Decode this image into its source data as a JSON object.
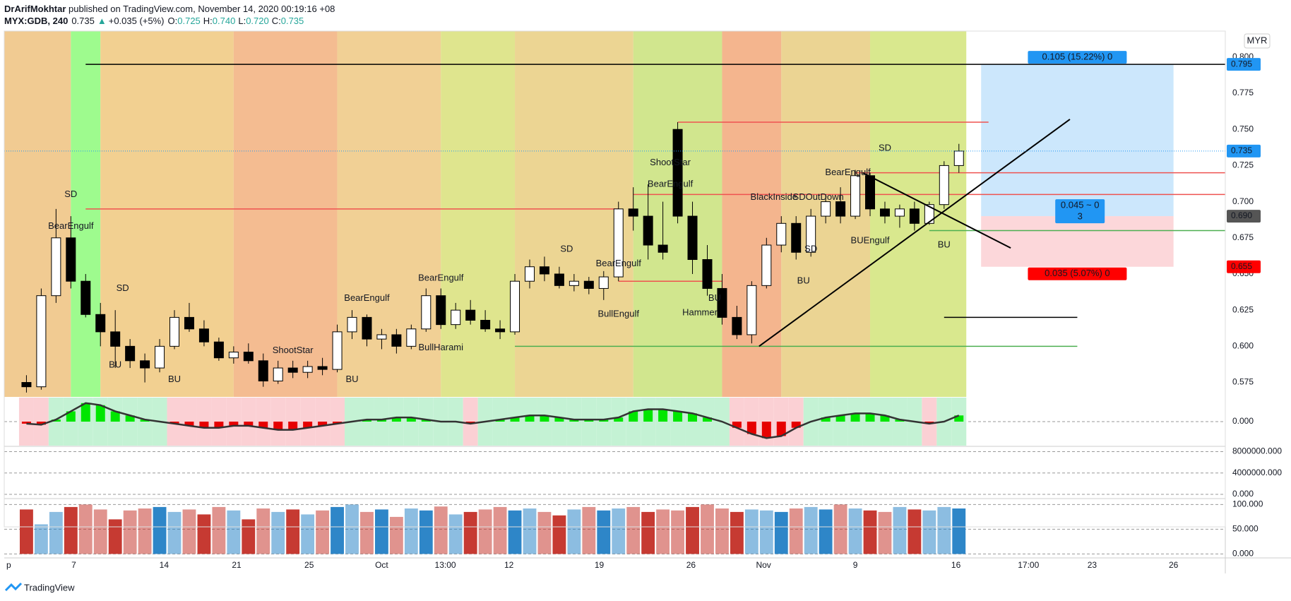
{
  "chart_data": {
    "type": "candlestick",
    "header": {
      "author": "DrArifMokhtar",
      "published": " published on TradingView.com, November 14, 2020 00:19:16 +08",
      "symbol": "MYX:GDB, 240",
      "price": "0.735",
      "arrow": "▲",
      "change": "+0.035 (+5%)",
      "ohlc": [
        {
          "label": "O:",
          "value": "0.725"
        },
        {
          "label": "H:",
          "value": "0.740"
        },
        {
          "label": "L:",
          "value": "0.720"
        },
        {
          "label": "C:",
          "value": "0.735"
        }
      ]
    },
    "currency": "MYR",
    "footer": "TradingView",
    "up_color": "#ffffff",
    "down_color": "#000000",
    "candles": [
      [
        0.575,
        0.58,
        0.568,
        0.572
      ],
      [
        0.572,
        0.64,
        0.57,
        0.635
      ],
      [
        0.635,
        0.695,
        0.63,
        0.675
      ],
      [
        0.675,
        0.69,
        0.64,
        0.645
      ],
      [
        0.645,
        0.65,
        0.62,
        0.622
      ],
      [
        0.622,
        0.63,
        0.6,
        0.61
      ],
      [
        0.61,
        0.625,
        0.585,
        0.6
      ],
      [
        0.6,
        0.605,
        0.585,
        0.59
      ],
      [
        0.59,
        0.595,
        0.575,
        0.585
      ],
      [
        0.585,
        0.605,
        0.582,
        0.6
      ],
      [
        0.6,
        0.625,
        0.598,
        0.62
      ],
      [
        0.62,
        0.63,
        0.61,
        0.612
      ],
      [
        0.612,
        0.618,
        0.6,
        0.603
      ],
      [
        0.603,
        0.606,
        0.59,
        0.592
      ],
      [
        0.592,
        0.6,
        0.588,
        0.596
      ],
      [
        0.596,
        0.602,
        0.588,
        0.59
      ],
      [
        0.59,
        0.595,
        0.572,
        0.576
      ],
      [
        0.576,
        0.59,
        0.574,
        0.585
      ],
      [
        0.585,
        0.59,
        0.578,
        0.582
      ],
      [
        0.582,
        0.59,
        0.578,
        0.586
      ],
      [
        0.586,
        0.592,
        0.58,
        0.584
      ],
      [
        0.584,
        0.615,
        0.582,
        0.61
      ],
      [
        0.61,
        0.625,
        0.605,
        0.62
      ],
      [
        0.62,
        0.622,
        0.6,
        0.605
      ],
      [
        0.605,
        0.612,
        0.598,
        0.608
      ],
      [
        0.608,
        0.612,
        0.595,
        0.6
      ],
      [
        0.6,
        0.615,
        0.598,
        0.612
      ],
      [
        0.612,
        0.64,
        0.61,
        0.635
      ],
      [
        0.635,
        0.64,
        0.612,
        0.615
      ],
      [
        0.615,
        0.63,
        0.612,
        0.625
      ],
      [
        0.625,
        0.632,
        0.615,
        0.618
      ],
      [
        0.618,
        0.625,
        0.61,
        0.612
      ],
      [
        0.612,
        0.618,
        0.605,
        0.61
      ],
      [
        0.61,
        0.65,
        0.608,
        0.645
      ],
      [
        0.645,
        0.66,
        0.64,
        0.655
      ],
      [
        0.655,
        0.662,
        0.645,
        0.65
      ],
      [
        0.65,
        0.655,
        0.64,
        0.642
      ],
      [
        0.642,
        0.65,
        0.638,
        0.645
      ],
      [
        0.645,
        0.648,
        0.636,
        0.64
      ],
      [
        0.64,
        0.652,
        0.632,
        0.648
      ],
      [
        0.648,
        0.7,
        0.645,
        0.695
      ],
      [
        0.695,
        0.71,
        0.68,
        0.69
      ],
      [
        0.69,
        0.712,
        0.66,
        0.67
      ],
      [
        0.67,
        0.7,
        0.66,
        0.665
      ],
      [
        0.75,
        0.755,
        0.685,
        0.69
      ],
      [
        0.69,
        0.7,
        0.65,
        0.66
      ],
      [
        0.66,
        0.67,
        0.635,
        0.64
      ],
      [
        0.64,
        0.65,
        0.615,
        0.62
      ],
      [
        0.62,
        0.628,
        0.605,
        0.608
      ],
      [
        0.608,
        0.645,
        0.602,
        0.642
      ],
      [
        0.642,
        0.675,
        0.64,
        0.67
      ],
      [
        0.67,
        0.69,
        0.665,
        0.685
      ],
      [
        0.685,
        0.69,
        0.66,
        0.665
      ],
      [
        0.665,
        0.695,
        0.662,
        0.69
      ],
      [
        0.69,
        0.705,
        0.685,
        0.7
      ],
      [
        0.7,
        0.71,
        0.685,
        0.69
      ],
      [
        0.69,
        0.722,
        0.688,
        0.718
      ],
      [
        0.718,
        0.72,
        0.69,
        0.695
      ],
      [
        0.695,
        0.7,
        0.685,
        0.69
      ],
      [
        0.69,
        0.698,
        0.682,
        0.695
      ],
      [
        0.695,
        0.7,
        0.68,
        0.685
      ],
      [
        0.685,
        0.7,
        0.684,
        0.698
      ],
      [
        0.698,
        0.728,
        0.695,
        0.725
      ],
      [
        0.725,
        0.74,
        0.72,
        0.735
      ]
    ],
    "xlim": [
      -1.5,
      81
    ],
    "xticks": [
      {
        "value": -1.2,
        "label": "p"
      },
      {
        "value": 3.2,
        "label": "7"
      },
      {
        "value": 9.3,
        "label": "14"
      },
      {
        "value": 14.2,
        "label": "21"
      },
      {
        "value": 19.1,
        "label": "25"
      },
      {
        "value": 24,
        "label": "Oct"
      },
      {
        "value": 28.3,
        "label": "13:00"
      },
      {
        "value": 32.6,
        "label": "12"
      },
      {
        "value": 38.7,
        "label": "19"
      },
      {
        "value": 44.9,
        "label": "26"
      },
      {
        "value": 49.8,
        "label": "Nov"
      },
      {
        "value": 56,
        "label": "9"
      },
      {
        "value": 62.8,
        "label": "16"
      },
      {
        "value": 67.7,
        "label": "17:00"
      },
      {
        "value": 72,
        "label": "23"
      },
      {
        "value": 77.5,
        "label": "26"
      }
    ],
    "ylim": [
      0.565,
      0.818
    ],
    "yticks": [
      {
        "value": 0.575,
        "label": "0.575"
      },
      {
        "value": 0.6,
        "label": "0.600"
      },
      {
        "value": 0.625,
        "label": "0.625"
      },
      {
        "value": 0.65,
        "label": "0.650"
      },
      {
        "value": 0.675,
        "label": "0.675"
      },
      {
        "value": 0.7,
        "label": "0.700"
      },
      {
        "value": 0.725,
        "label": "0.725"
      },
      {
        "value": 0.75,
        "label": "0.750"
      },
      {
        "value": 0.775,
        "label": "0.775"
      },
      {
        "value": 0.8,
        "label": "0.800"
      }
    ],
    "price_labels": [
      {
        "value": 0.795,
        "label": "0.795",
        "color": "#2196f3"
      },
      {
        "value": 0.735,
        "label": "0.735",
        "color": "#2196f3"
      },
      {
        "value": 0.69,
        "label": "0.690",
        "color": "#555555"
      },
      {
        "value": 0.655,
        "label": "0.655",
        "color": "#ff0000"
      }
    ],
    "position": {
      "from": 64.5,
      "to": 77.5,
      "target_text": "0.105 (15.22%) 0",
      "stop_text": "0.035 (5.07%) 0",
      "mid_text": "0.045 ~ 0",
      "mid_text2": "3"
    },
    "levels": [
      {
        "value": 0.795,
        "from": 4,
        "to": 81,
        "color": "#000000"
      },
      {
        "value": 0.755,
        "from": 44,
        "to": 65,
        "color": "#ef5350"
      },
      {
        "value": 0.72,
        "from": 56,
        "to": 81,
        "color": "#ef5350"
      },
      {
        "value": 0.705,
        "from": 41,
        "to": 81,
        "color": "#ef5350"
      },
      {
        "value": 0.695,
        "from": 4,
        "to": 40,
        "color": "#ef5350"
      },
      {
        "value": 0.68,
        "from": 61,
        "to": 81,
        "color": "#4caf50"
      },
      {
        "value": 0.645,
        "from": 40,
        "to": 47,
        "color": "#ef5350"
      },
      {
        "value": 0.62,
        "from": 62,
        "to": 71,
        "color": "#000000"
      },
      {
        "value": 0.6,
        "from": 33,
        "to": 71,
        "color": "#4caf50"
      }
    ],
    "trendlines": [
      {
        "x": [
          49.5,
          70.5
        ],
        "y": [
          0.6,
          0.757
        ]
      },
      {
        "x": [
          56.5,
          66.5
        ],
        "y": [
          0.72,
          0.668
        ]
      }
    ],
    "annotations": [
      {
        "text": "SD",
        "x": 3,
        "y": 0.705,
        "color": "#ef5350"
      },
      {
        "text": "BearEngulf",
        "x": 3,
        "y": 0.683,
        "color": "#ef5350"
      },
      {
        "text": "BU",
        "x": 6,
        "y": 0.587,
        "color": "#4caf50"
      },
      {
        "text": "SD",
        "x": 6.5,
        "y": 0.64,
        "color": "#ef5350"
      },
      {
        "text": "BU",
        "x": 10,
        "y": 0.577,
        "color": "#4caf50"
      },
      {
        "text": "ShootStar",
        "x": 18,
        "y": 0.597,
        "color": "#b0bec5"
      },
      {
        "text": "BearEngulf",
        "x": 23,
        "y": 0.633,
        "color": "#ef5350"
      },
      {
        "text": "BU",
        "x": 22,
        "y": 0.577,
        "color": "#4caf50"
      },
      {
        "text": "BearEngulf",
        "x": 28,
        "y": 0.647,
        "color": "#ef5350"
      },
      {
        "text": "BullHarami",
        "x": 28,
        "y": 0.599,
        "color": "#4caf50"
      },
      {
        "text": "SD",
        "x": 36.5,
        "y": 0.667,
        "color": "#ef5350"
      },
      {
        "text": "BearEngulf",
        "x": 40,
        "y": 0.657,
        "color": "#ef5350"
      },
      {
        "text": "BullEngulf",
        "x": 40,
        "y": 0.622,
        "color": "#4caf50"
      },
      {
        "text": "ShootStar",
        "x": 43.5,
        "y": 0.727,
        "color": "#b0bec5"
      },
      {
        "text": "BearEngulf",
        "x": 43.5,
        "y": 0.712,
        "color": "#ef5350"
      },
      {
        "text": "Hammer",
        "x": 45.5,
        "y": 0.623,
        "color": "#b0bec5"
      },
      {
        "text": "BU",
        "x": 46.5,
        "y": 0.633,
        "color": "#4caf50"
      },
      {
        "text": "BlackInside",
        "x": 50.5,
        "y": 0.703,
        "color": "#ef5350"
      },
      {
        "text": "SDOutDown",
        "x": 53.5,
        "y": 0.703,
        "color": "#ef5350"
      },
      {
        "text": "BU",
        "x": 52.5,
        "y": 0.645,
        "color": "#4caf50"
      },
      {
        "text": "SD",
        "x": 53,
        "y": 0.667,
        "color": "#ef5350"
      },
      {
        "text": "BearEngulf",
        "x": 55.5,
        "y": 0.72,
        "color": "#ef5350"
      },
      {
        "text": "SD",
        "x": 58,
        "y": 0.737,
        "color": "#ef5350"
      },
      {
        "text": "BUEngulf",
        "x": 57,
        "y": 0.673,
        "color": "#4caf50"
      },
      {
        "text": "BU",
        "x": 62,
        "y": 0.67,
        "color": "#4caf50"
      }
    ],
    "oscillator": {
      "values": [
        -0.1,
        -0.15,
        0.1,
        0.5,
        0.9,
        0.8,
        0.5,
        0.3,
        0.1,
        0,
        -0.1,
        -0.2,
        -0.3,
        -0.3,
        -0.2,
        -0.2,
        -0.3,
        -0.4,
        -0.4,
        -0.3,
        -0.2,
        -0.1,
        0,
        0.1,
        0.1,
        0.2,
        0.2,
        0.1,
        0,
        0,
        -0.1,
        0,
        0.1,
        0.2,
        0.3,
        0.3,
        0.2,
        0.1,
        0.1,
        0.1,
        0.2,
        0.5,
        0.6,
        0.6,
        0.5,
        0.4,
        0.2,
        0,
        -0.3,
        -0.6,
        -0.8,
        -0.7,
        -0.3,
        0,
        0.2,
        0.3,
        0.4,
        0.4,
        0.3,
        0.1,
        0,
        -0.1,
        0,
        0.3
      ],
      "ylim": [
        -1.2,
        1.2
      ],
      "yticks": [
        {
          "value": 0,
          "label": "0.000"
        }
      ]
    },
    "volume": {
      "ylim": [
        -800000,
        9000000
      ],
      "yticks": [
        {
          "value": 0,
          "label": "0.000"
        },
        {
          "value": 4000000,
          "label": "4000000.000"
        },
        {
          "value": 8000000,
          "label": "8000000.000"
        }
      ]
    },
    "percent": {
      "values": [
        90,
        60,
        85,
        95,
        100,
        90,
        70,
        88,
        92,
        95,
        85,
        90,
        80,
        95,
        88,
        70,
        92,
        85,
        90,
        80,
        88,
        95,
        100,
        85,
        90,
        75,
        92,
        88,
        96,
        80,
        85,
        90,
        95,
        88,
        92,
        85,
        78,
        90,
        95,
        88,
        92,
        95,
        85,
        90,
        88,
        95,
        100,
        92,
        85,
        90,
        88,
        85,
        92,
        95,
        90,
        100,
        92,
        88,
        85,
        95,
        90,
        88,
        95,
        92
      ],
      "ylim": [
        -8,
        112
      ],
      "yticks": [
        {
          "value": 0,
          "label": "0.000"
        },
        {
          "value": 50,
          "label": "50.000"
        },
        {
          "value": 100,
          "label": "100.000"
        }
      ]
    }
  }
}
